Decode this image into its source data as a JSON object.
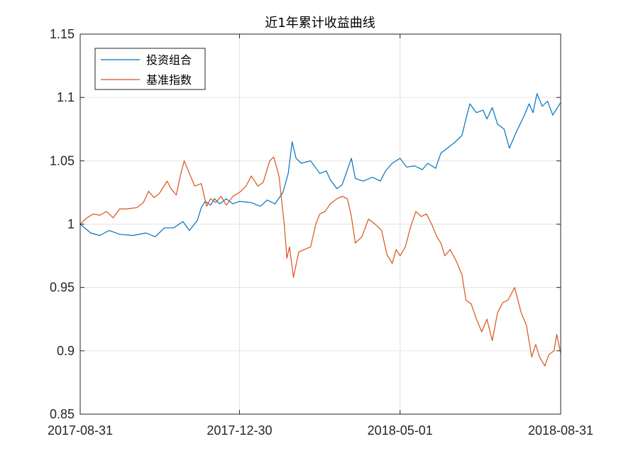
{
  "chart_data": {
    "type": "line",
    "title": "近1年累计收益曲线",
    "xlabel": "",
    "ylabel": "",
    "x_ticks": [
      "2017-08-31",
      "2017-12-30",
      "2018-05-01",
      "2018-08-31"
    ],
    "y_ticks": [
      "0.85",
      "0.9",
      "0.95",
      "1",
      "1.05",
      "1.1",
      "1.15"
    ],
    "xlim": [
      "2017-08-31",
      "2018-08-31"
    ],
    "ylim": [
      0.85,
      1.15
    ],
    "grid": true,
    "legend_position": "top-left",
    "series": [
      {
        "name": "投资组合",
        "color": "#0072BD",
        "points": [
          [
            "2017-08-31",
            1.0
          ],
          [
            "2017-09-08",
            0.993
          ],
          [
            "2017-09-15",
            0.991
          ],
          [
            "2017-09-22",
            0.995
          ],
          [
            "2017-09-30",
            0.992
          ],
          [
            "2017-10-10",
            0.991
          ],
          [
            "2017-10-20",
            0.993
          ],
          [
            "2017-10-27",
            0.99
          ],
          [
            "2017-11-03",
            0.997
          ],
          [
            "2017-11-10",
            0.997
          ],
          [
            "2017-11-17",
            1.002
          ],
          [
            "2017-11-22",
            0.995
          ],
          [
            "2017-11-28",
            1.003
          ],
          [
            "2017-12-01",
            1.013
          ],
          [
            "2017-12-04",
            1.018
          ],
          [
            "2017-12-08",
            1.015
          ],
          [
            "2017-12-11",
            1.02
          ],
          [
            "2017-12-15",
            1.016
          ],
          [
            "2017-12-20",
            1.02
          ],
          [
            "2017-12-25",
            1.016
          ],
          [
            "2017-12-30",
            1.018
          ],
          [
            "2018-01-08",
            1.017
          ],
          [
            "2018-01-15",
            1.014
          ],
          [
            "2018-01-20",
            1.019
          ],
          [
            "2018-01-26",
            1.016
          ],
          [
            "2018-02-01",
            1.025
          ],
          [
            "2018-02-05",
            1.04
          ],
          [
            "2018-02-08",
            1.065
          ],
          [
            "2018-02-11",
            1.052
          ],
          [
            "2018-02-15",
            1.048
          ],
          [
            "2018-02-22",
            1.05
          ],
          [
            "2018-03-01",
            1.04
          ],
          [
            "2018-03-06",
            1.042
          ],
          [
            "2018-03-09",
            1.035
          ],
          [
            "2018-03-14",
            1.028
          ],
          [
            "2018-03-18",
            1.031
          ],
          [
            "2018-03-22",
            1.043
          ],
          [
            "2018-03-25",
            1.052
          ],
          [
            "2018-03-28",
            1.036
          ],
          [
            "2018-04-03",
            1.034
          ],
          [
            "2018-04-10",
            1.037
          ],
          [
            "2018-04-16",
            1.034
          ],
          [
            "2018-04-20",
            1.042
          ],
          [
            "2018-04-25",
            1.048
          ],
          [
            "2018-05-01",
            1.052
          ],
          [
            "2018-05-06",
            1.045
          ],
          [
            "2018-05-12",
            1.046
          ],
          [
            "2018-05-18",
            1.043
          ],
          [
            "2018-05-22",
            1.048
          ],
          [
            "2018-05-28",
            1.044
          ],
          [
            "2018-06-01",
            1.056
          ],
          [
            "2018-06-06",
            1.06
          ],
          [
            "2018-06-12",
            1.065
          ],
          [
            "2018-06-17",
            1.07
          ],
          [
            "2018-06-20",
            1.083
          ],
          [
            "2018-06-23",
            1.095
          ],
          [
            "2018-06-28",
            1.088
          ],
          [
            "2018-07-03",
            1.09
          ],
          [
            "2018-07-06",
            1.083
          ],
          [
            "2018-07-10",
            1.092
          ],
          [
            "2018-07-14",
            1.079
          ],
          [
            "2018-07-19",
            1.075
          ],
          [
            "2018-07-23",
            1.06
          ],
          [
            "2018-07-28",
            1.072
          ],
          [
            "2018-08-03",
            1.085
          ],
          [
            "2018-08-07",
            1.095
          ],
          [
            "2018-08-10",
            1.088
          ],
          [
            "2018-08-13",
            1.103
          ],
          [
            "2018-08-17",
            1.093
          ],
          [
            "2018-08-21",
            1.097
          ],
          [
            "2018-08-25",
            1.086
          ],
          [
            "2018-08-28",
            1.091
          ],
          [
            "2018-08-31",
            1.096
          ]
        ]
      },
      {
        "name": "基准指数",
        "color": "#D95319",
        "points": [
          [
            "2017-08-31",
            1.0
          ],
          [
            "2017-09-05",
            1.005
          ],
          [
            "2017-09-10",
            1.008
          ],
          [
            "2017-09-15",
            1.007
          ],
          [
            "2017-09-20",
            1.01
          ],
          [
            "2017-09-25",
            1.005
          ],
          [
            "2017-09-30",
            1.012
          ],
          [
            "2017-10-05",
            1.012
          ],
          [
            "2017-10-13",
            1.013
          ],
          [
            "2017-10-18",
            1.017
          ],
          [
            "2017-10-22",
            1.026
          ],
          [
            "2017-10-26",
            1.021
          ],
          [
            "2017-10-30",
            1.024
          ],
          [
            "2017-11-05",
            1.034
          ],
          [
            "2017-11-08",
            1.028
          ],
          [
            "2017-11-12",
            1.023
          ],
          [
            "2017-11-15",
            1.038
          ],
          [
            "2017-11-18",
            1.05
          ],
          [
            "2017-11-22",
            1.04
          ],
          [
            "2017-11-26",
            1.03
          ],
          [
            "2017-12-01",
            1.032
          ],
          [
            "2017-12-05",
            1.014
          ],
          [
            "2017-12-08",
            1.02
          ],
          [
            "2017-12-12",
            1.017
          ],
          [
            "2017-12-16",
            1.022
          ],
          [
            "2017-12-20",
            1.015
          ],
          [
            "2017-12-25",
            1.022
          ],
          [
            "2017-12-30",
            1.025
          ],
          [
            "2018-01-04",
            1.03
          ],
          [
            "2018-01-08",
            1.038
          ],
          [
            "2018-01-13",
            1.03
          ],
          [
            "2018-01-17",
            1.033
          ],
          [
            "2018-01-22",
            1.05
          ],
          [
            "2018-01-25",
            1.053
          ],
          [
            "2018-01-29",
            1.038
          ],
          [
            "2018-02-02",
            1.0
          ],
          [
            "2018-02-04",
            0.973
          ],
          [
            "2018-02-06",
            0.982
          ],
          [
            "2018-02-09",
            0.958
          ],
          [
            "2018-02-13",
            0.978
          ],
          [
            "2018-02-22",
            0.982
          ],
          [
            "2018-02-26",
            1.0
          ],
          [
            "2018-03-01",
            1.008
          ],
          [
            "2018-03-05",
            1.01
          ],
          [
            "2018-03-09",
            1.016
          ],
          [
            "2018-03-14",
            1.02
          ],
          [
            "2018-03-18",
            1.022
          ],
          [
            "2018-03-22",
            1.02
          ],
          [
            "2018-03-25",
            1.006
          ],
          [
            "2018-03-28",
            0.985
          ],
          [
            "2018-04-02",
            0.99
          ],
          [
            "2018-04-07",
            1.004
          ],
          [
            "2018-04-12",
            1.0
          ],
          [
            "2018-04-17",
            0.995
          ],
          [
            "2018-04-21",
            0.976
          ],
          [
            "2018-04-25",
            0.969
          ],
          [
            "2018-04-28",
            0.98
          ],
          [
            "2018-05-01",
            0.975
          ],
          [
            "2018-05-05",
            0.982
          ],
          [
            "2018-05-09",
            0.998
          ],
          [
            "2018-05-13",
            1.01
          ],
          [
            "2018-05-17",
            1.006
          ],
          [
            "2018-05-21",
            1.008
          ],
          [
            "2018-05-25",
            1.0
          ],
          [
            "2018-05-29",
            0.99
          ],
          [
            "2018-06-01",
            0.985
          ],
          [
            "2018-06-04",
            0.975
          ],
          [
            "2018-06-08",
            0.98
          ],
          [
            "2018-06-13",
            0.97
          ],
          [
            "2018-06-17",
            0.96
          ],
          [
            "2018-06-20",
            0.94
          ],
          [
            "2018-06-24",
            0.937
          ],
          [
            "2018-06-28",
            0.925
          ],
          [
            "2018-07-02",
            0.915
          ],
          [
            "2018-07-06",
            0.925
          ],
          [
            "2018-07-10",
            0.908
          ],
          [
            "2018-07-14",
            0.93
          ],
          [
            "2018-07-18",
            0.938
          ],
          [
            "2018-07-22",
            0.94
          ],
          [
            "2018-07-27",
            0.95
          ],
          [
            "2018-08-01",
            0.93
          ],
          [
            "2018-08-05",
            0.92
          ],
          [
            "2018-08-09",
            0.895
          ],
          [
            "2018-08-12",
            0.905
          ],
          [
            "2018-08-15",
            0.895
          ],
          [
            "2018-08-19",
            0.888
          ],
          [
            "2018-08-22",
            0.897
          ],
          [
            "2018-08-26",
            0.9
          ],
          [
            "2018-08-28",
            0.913
          ],
          [
            "2018-08-31",
            0.898
          ]
        ]
      }
    ]
  }
}
